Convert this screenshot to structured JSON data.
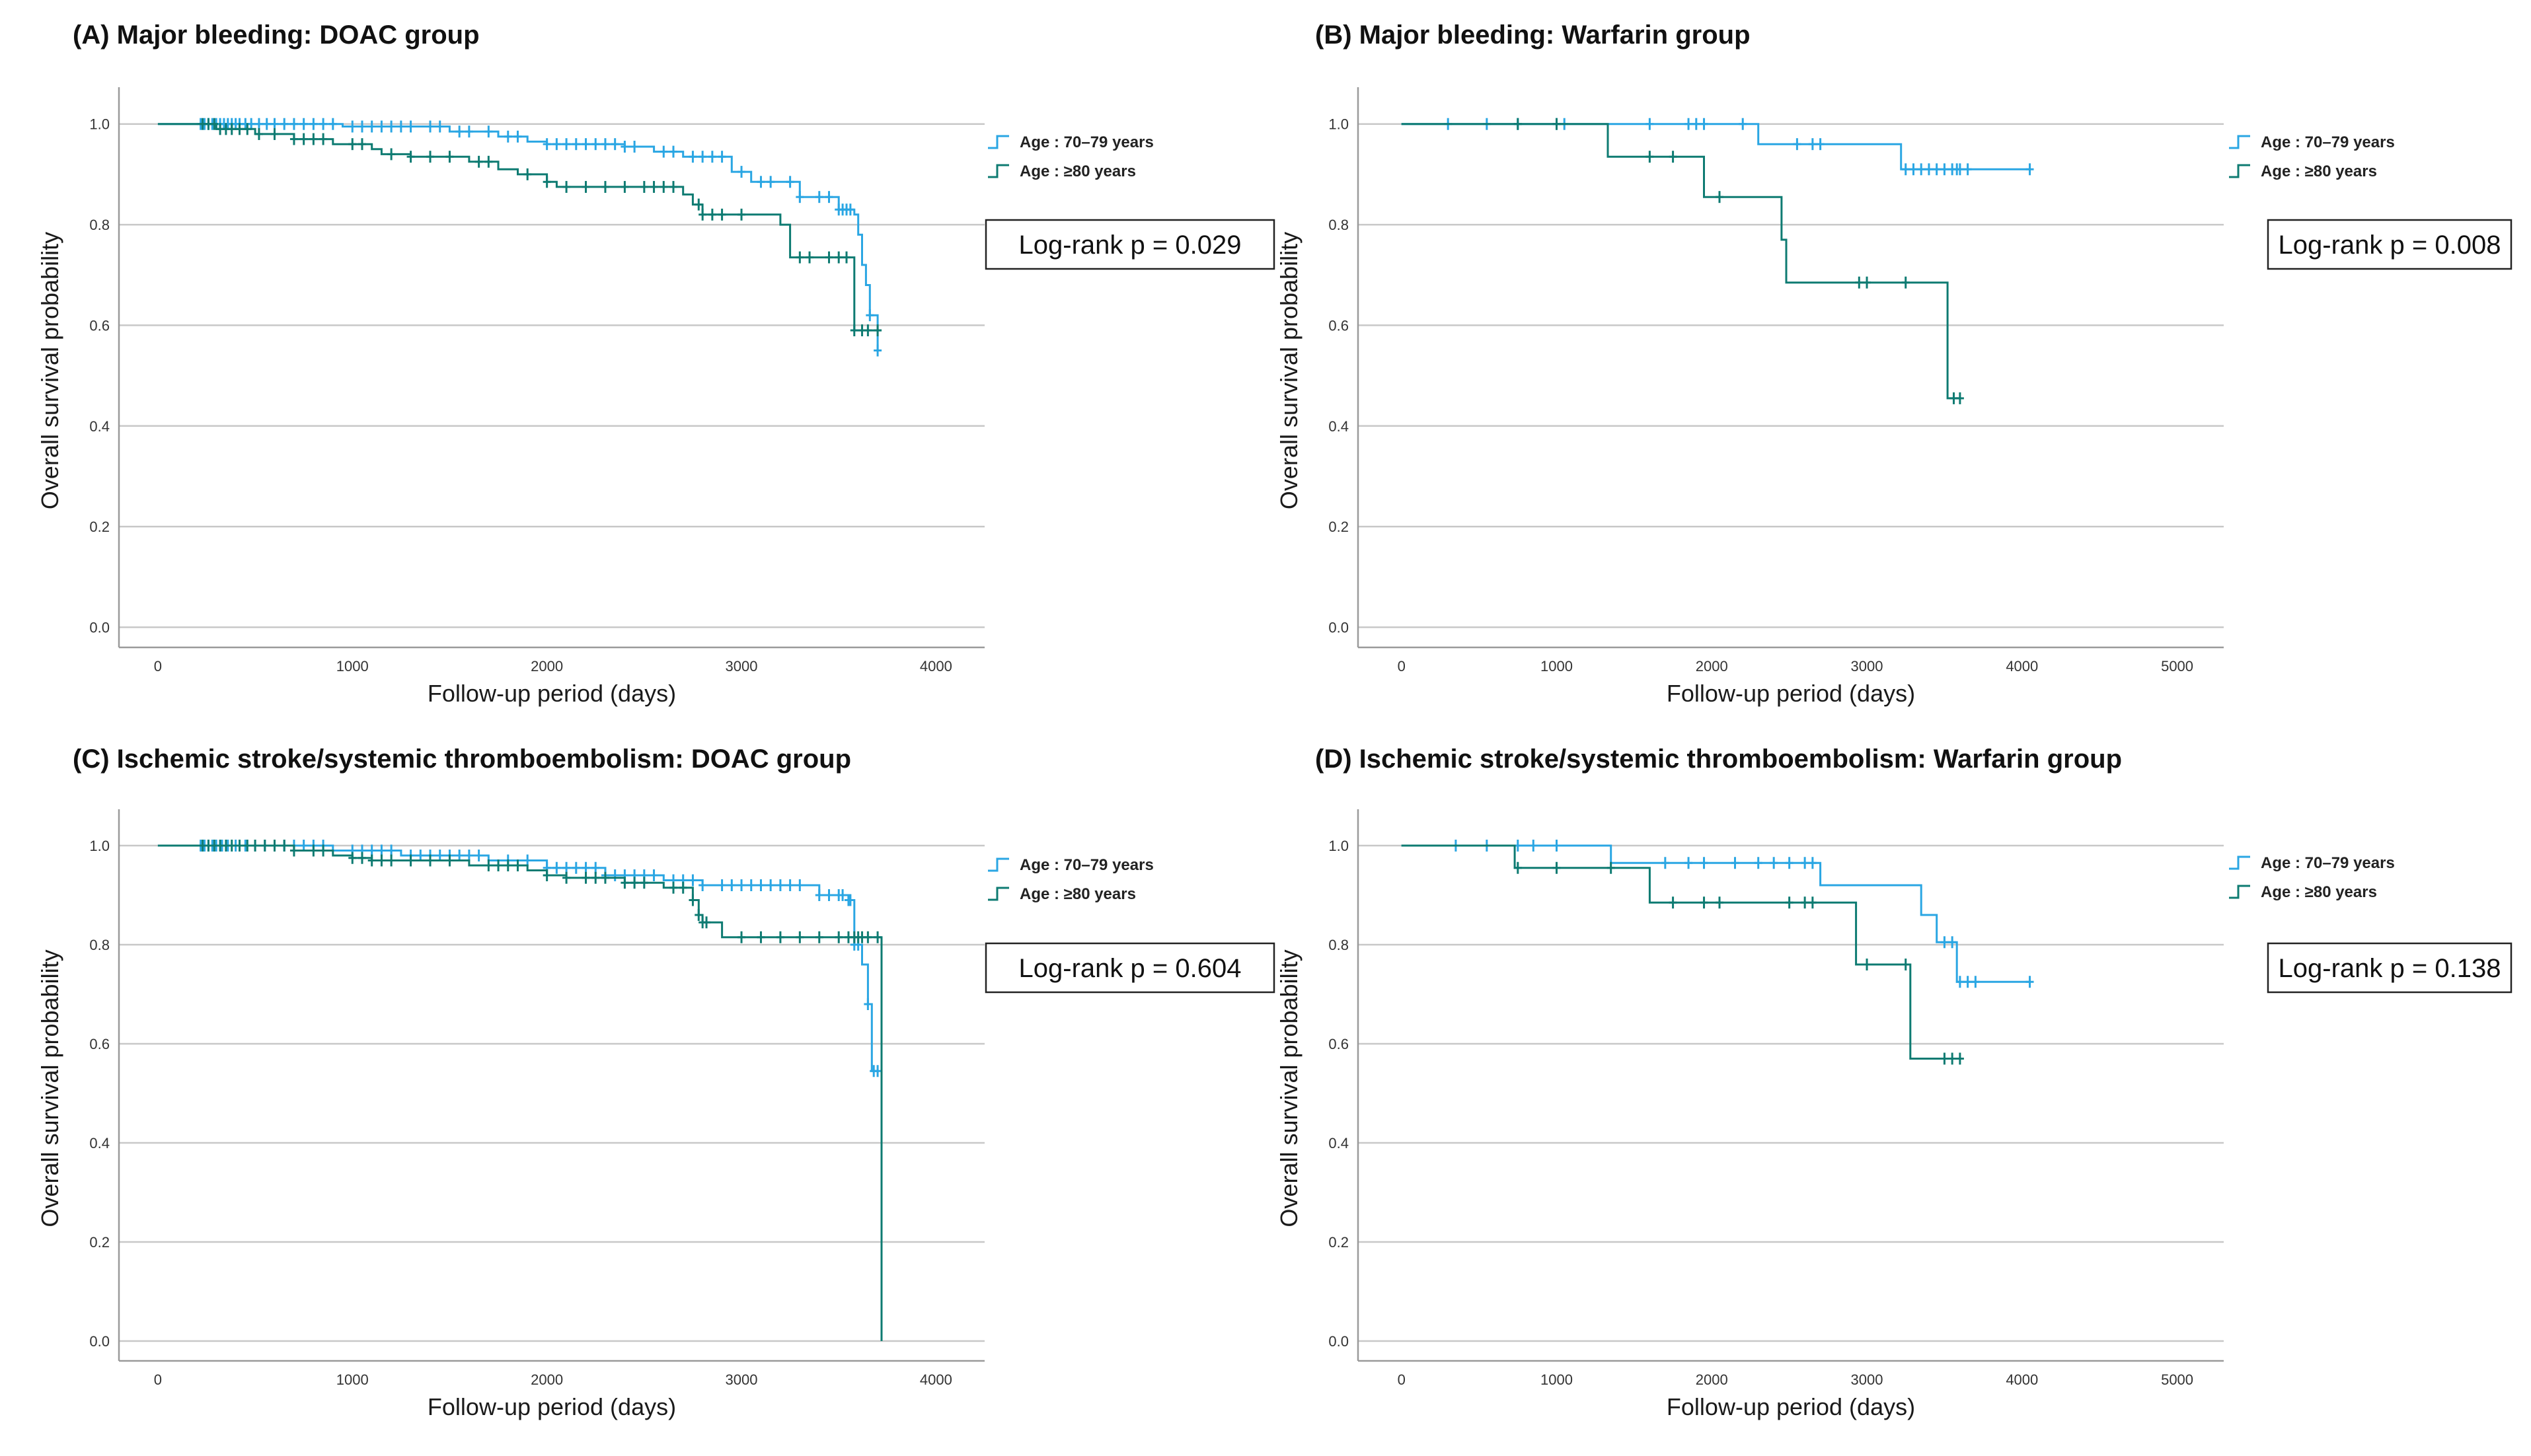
{
  "chart_data": [
    {
      "type": "line",
      "title": "(A) Major bleeding: DOAC group",
      "xlabel": "Follow-up period (days)",
      "ylabel": "Overall survival probability",
      "xlim": [
        -200,
        4250
      ],
      "ylim": [
        -0.04,
        1.06
      ],
      "xticks": [
        0,
        1000,
        2000,
        3000,
        4000
      ],
      "yticks": [
        0.0,
        0.2,
        0.4,
        0.6,
        0.8,
        1.0
      ],
      "xtick_labels": [
        "0",
        "1000",
        "2000",
        "3000",
        "4000"
      ],
      "ytick_labels": [
        "0.0",
        "0.2",
        "0.4",
        "0.6",
        "0.8",
        "1.0"
      ],
      "grid": "horizontal",
      "legend_position": "right",
      "annotation": "Log-rank p = 0.029",
      "series": [
        {
          "name": "Age : 70–79 years",
          "color": "#2aa6e3",
          "steps": [
            [
              0,
              1.0
            ],
            [
              950,
              0.995
            ],
            [
              1500,
              0.985
            ],
            [
              1750,
              0.975
            ],
            [
              1900,
              0.965
            ],
            [
              2000,
              0.96
            ],
            [
              2400,
              0.955
            ],
            [
              2550,
              0.945
            ],
            [
              2700,
              0.935
            ],
            [
              2950,
              0.905
            ],
            [
              3050,
              0.885
            ],
            [
              3300,
              0.855
            ],
            [
              3500,
              0.83
            ],
            [
              3580,
              0.82
            ],
            [
              3600,
              0.78
            ],
            [
              3620,
              0.72
            ],
            [
              3640,
              0.68
            ],
            [
              3660,
              0.62
            ],
            [
              3700,
              0.55
            ]
          ],
          "end": 3720,
          "censors": [
            220,
            240,
            260,
            280,
            300,
            320,
            340,
            360,
            380,
            400,
            420,
            450,
            480,
            520,
            560,
            600,
            650,
            700,
            750,
            800,
            850,
            900,
            1000,
            1050,
            1100,
            1150,
            1200,
            1250,
            1300,
            1400,
            1450,
            1550,
            1600,
            1700,
            1800,
            1850,
            2000,
            2050,
            2100,
            2150,
            2200,
            2250,
            2300,
            2350,
            2400,
            2450,
            2600,
            2650,
            2750,
            2800,
            2850,
            2900,
            3000,
            3100,
            3150,
            3250,
            3300,
            3400,
            3450,
            3500,
            3520,
            3540,
            3560,
            3660,
            3700
          ]
        },
        {
          "name": "Age : ≥80 years",
          "color": "#0e7b72",
          "steps": [
            [
              0,
              1.0
            ],
            [
              300,
              0.99
            ],
            [
              500,
              0.98
            ],
            [
              700,
              0.97
            ],
            [
              900,
              0.96
            ],
            [
              1100,
              0.95
            ],
            [
              1150,
              0.94
            ],
            [
              1300,
              0.935
            ],
            [
              1600,
              0.925
            ],
            [
              1750,
              0.91
            ],
            [
              1850,
              0.9
            ],
            [
              2000,
              0.885
            ],
            [
              2050,
              0.875
            ],
            [
              2700,
              0.86
            ],
            [
              2750,
              0.84
            ],
            [
              2800,
              0.82
            ],
            [
              3200,
              0.8
            ],
            [
              3250,
              0.735
            ],
            [
              3580,
              0.59
            ]
          ],
          "end": 3720,
          "censors": [
            230,
            260,
            290,
            320,
            350,
            380,
            420,
            460,
            520,
            600,
            700,
            750,
            800,
            850,
            1000,
            1050,
            1200,
            1300,
            1400,
            1500,
            1650,
            1700,
            1900,
            2000,
            2100,
            2200,
            2300,
            2400,
            2500,
            2550,
            2600,
            2650,
            2780,
            2800,
            2850,
            2900,
            3000,
            3300,
            3350,
            3450,
            3500,
            3540,
            3580,
            3620,
            3650,
            3700
          ]
        }
      ]
    },
    {
      "type": "line",
      "title": "(B) Major bleeding: Warfarin group",
      "xlabel": "Follow-up period (days)",
      "ylabel": "Overall survival probability",
      "xlim": [
        -280,
        5300
      ],
      "ylim": [
        -0.04,
        1.06
      ],
      "xticks": [
        0,
        1000,
        2000,
        3000,
        4000,
        5000
      ],
      "yticks": [
        0.0,
        0.2,
        0.4,
        0.6,
        0.8,
        1.0
      ],
      "xtick_labels": [
        "0",
        "1000",
        "2000",
        "3000",
        "4000",
        "5000"
      ],
      "ytick_labels": [
        "0.0",
        "0.2",
        "0.4",
        "0.6",
        "0.8",
        "1.0"
      ],
      "grid": "horizontal",
      "legend_position": "right",
      "annotation": "Log-rank p = 0.008",
      "series": [
        {
          "name": "Age : 70–79 years",
          "color": "#2aa6e3",
          "steps": [
            [
              0,
              1.0
            ],
            [
              2300,
              0.96
            ],
            [
              3220,
              0.91
            ]
          ],
          "end": 4050,
          "censors": [
            300,
            550,
            750,
            1000,
            1050,
            1600,
            1850,
            1900,
            1950,
            2200,
            2550,
            2650,
            2700,
            3250,
            3300,
            3350,
            3400,
            3450,
            3500,
            3550,
            3580,
            3600,
            3650,
            4050
          ]
        },
        {
          "name": "Age : ≥80 years",
          "color": "#0e7b72",
          "steps": [
            [
              0,
              1.0
            ],
            [
              1330,
              0.935
            ],
            [
              1950,
              0.855
            ],
            [
              2450,
              0.77
            ],
            [
              2480,
              0.685
            ],
            [
              3520,
              0.455
            ]
          ],
          "end": 3600,
          "censors": [
            750,
            1000,
            1600,
            1750,
            2050,
            2950,
            3000,
            3250,
            3560,
            3600
          ]
        }
      ]
    },
    {
      "type": "line",
      "title": "(C) Ischemic stroke/systemic thromboembolism: DOAC group",
      "xlabel": "Follow-up period (days)",
      "ylabel": "Overall survival probability",
      "xlim": [
        -200,
        4250
      ],
      "ylim": [
        -0.04,
        1.06
      ],
      "xticks": [
        0,
        1000,
        2000,
        3000,
        4000
      ],
      "yticks": [
        0.0,
        0.2,
        0.4,
        0.6,
        0.8,
        1.0
      ],
      "xtick_labels": [
        "0",
        "1000",
        "2000",
        "3000",
        "4000"
      ],
      "ytick_labels": [
        "0.0",
        "0.2",
        "0.4",
        "0.6",
        "0.8",
        "1.0"
      ],
      "grid": "horizontal",
      "legend_position": "right",
      "annotation": "Log-rank p = 0.604",
      "series": [
        {
          "name": "Age : 70–79 years",
          "color": "#2aa6e3",
          "steps": [
            [
              0,
              1.0
            ],
            [
              900,
              0.99
            ],
            [
              1250,
              0.98
            ],
            [
              1700,
              0.97
            ],
            [
              2000,
              0.955
            ],
            [
              2300,
              0.94
            ],
            [
              2600,
              0.93
            ],
            [
              2800,
              0.92
            ],
            [
              3400,
              0.9
            ],
            [
              3550,
              0.89
            ],
            [
              3580,
              0.8
            ],
            [
              3620,
              0.76
            ],
            [
              3650,
              0.68
            ],
            [
              3670,
              0.545
            ]
          ],
          "end": 3700,
          "censors": [
            220,
            240,
            260,
            280,
            300,
            330,
            360,
            400,
            450,
            500,
            550,
            600,
            650,
            700,
            750,
            800,
            850,
            1000,
            1050,
            1100,
            1150,
            1200,
            1300,
            1350,
            1400,
            1450,
            1500,
            1550,
            1600,
            1650,
            1800,
            1900,
            2000,
            2050,
            2100,
            2150,
            2200,
            2250,
            2300,
            2350,
            2400,
            2450,
            2500,
            2550,
            2650,
            2700,
            2750,
            2800,
            2900,
            2950,
            3000,
            3050,
            3100,
            3150,
            3200,
            3250,
            3300,
            3400,
            3450,
            3500,
            3520,
            3550,
            3560,
            3580,
            3600,
            3650,
            3680,
            3700
          ]
        },
        {
          "name": "Age : ≥80 years",
          "color": "#0e7b72",
          "steps": [
            [
              0,
              1.0
            ],
            [
              700,
              0.99
            ],
            [
              900,
              0.98
            ],
            [
              1000,
              0.975
            ],
            [
              1100,
              0.97
            ],
            [
              1600,
              0.96
            ],
            [
              1900,
              0.95
            ],
            [
              2000,
              0.94
            ],
            [
              2100,
              0.935
            ],
            [
              2400,
              0.925
            ],
            [
              2600,
              0.915
            ],
            [
              2750,
              0.89
            ],
            [
              2780,
              0.86
            ],
            [
              2800,
              0.845
            ],
            [
              2900,
              0.815
            ],
            [
              3720,
              0.0
            ]
          ],
          "end": 3720,
          "censors": [
            230,
            260,
            290,
            320,
            350,
            380,
            420,
            460,
            500,
            550,
            600,
            650,
            700,
            800,
            850,
            1000,
            1050,
            1100,
            1150,
            1200,
            1300,
            1400,
            1500,
            1700,
            1750,
            1800,
            1850,
            2000,
            2100,
            2200,
            2250,
            2300,
            2400,
            2450,
            2500,
            2650,
            2700,
            2750,
            2780,
            2800,
            2820,
            3000,
            3100,
            3200,
            3300,
            3400,
            3500,
            3550,
            3580,
            3600,
            3620,
            3650,
            3700
          ]
        }
      ]
    },
    {
      "type": "line",
      "title": "(D) Ischemic stroke/systemic thromboembolism: Warfarin group",
      "xlabel": "Follow-up period (days)",
      "ylabel": "Overall survival probability",
      "xlim": [
        -280,
        5300
      ],
      "ylim": [
        -0.04,
        1.06
      ],
      "xticks": [
        0,
        1000,
        2000,
        3000,
        4000,
        5000
      ],
      "yticks": [
        0.0,
        0.2,
        0.4,
        0.6,
        0.8,
        1.0
      ],
      "xtick_labels": [
        "0",
        "1000",
        "2000",
        "3000",
        "4000",
        "5000"
      ],
      "ytick_labels": [
        "0.0",
        "0.2",
        "0.4",
        "0.6",
        "0.8",
        "1.0"
      ],
      "grid": "horizontal",
      "legend_position": "right",
      "annotation": "Log-rank p = 0.138",
      "series": [
        {
          "name": "Age : 70–79 years",
          "color": "#2aa6e3",
          "steps": [
            [
              0,
              1.0
            ],
            [
              1350,
              0.965
            ],
            [
              2700,
              0.92
            ],
            [
              3350,
              0.86
            ],
            [
              3450,
              0.805
            ],
            [
              3580,
              0.725
            ]
          ],
          "end": 4050,
          "censors": [
            350,
            550,
            750,
            850,
            1000,
            1700,
            1850,
            1950,
            2150,
            2300,
            2400,
            2500,
            2600,
            2650,
            3500,
            3550,
            3600,
            3650,
            3700,
            4050
          ]
        },
        {
          "name": "Age : ≥80 years",
          "color": "#0e7b72",
          "steps": [
            [
              0,
              1.0
            ],
            [
              730,
              0.955
            ],
            [
              1600,
              0.885
            ],
            [
              2930,
              0.76
            ],
            [
              3280,
              0.57
            ]
          ],
          "end": 3600,
          "censors": [
            750,
            1000,
            1350,
            1750,
            1950,
            2050,
            2500,
            2600,
            2650,
            3000,
            3250,
            3500,
            3550,
            3600
          ]
        }
      ]
    }
  ]
}
